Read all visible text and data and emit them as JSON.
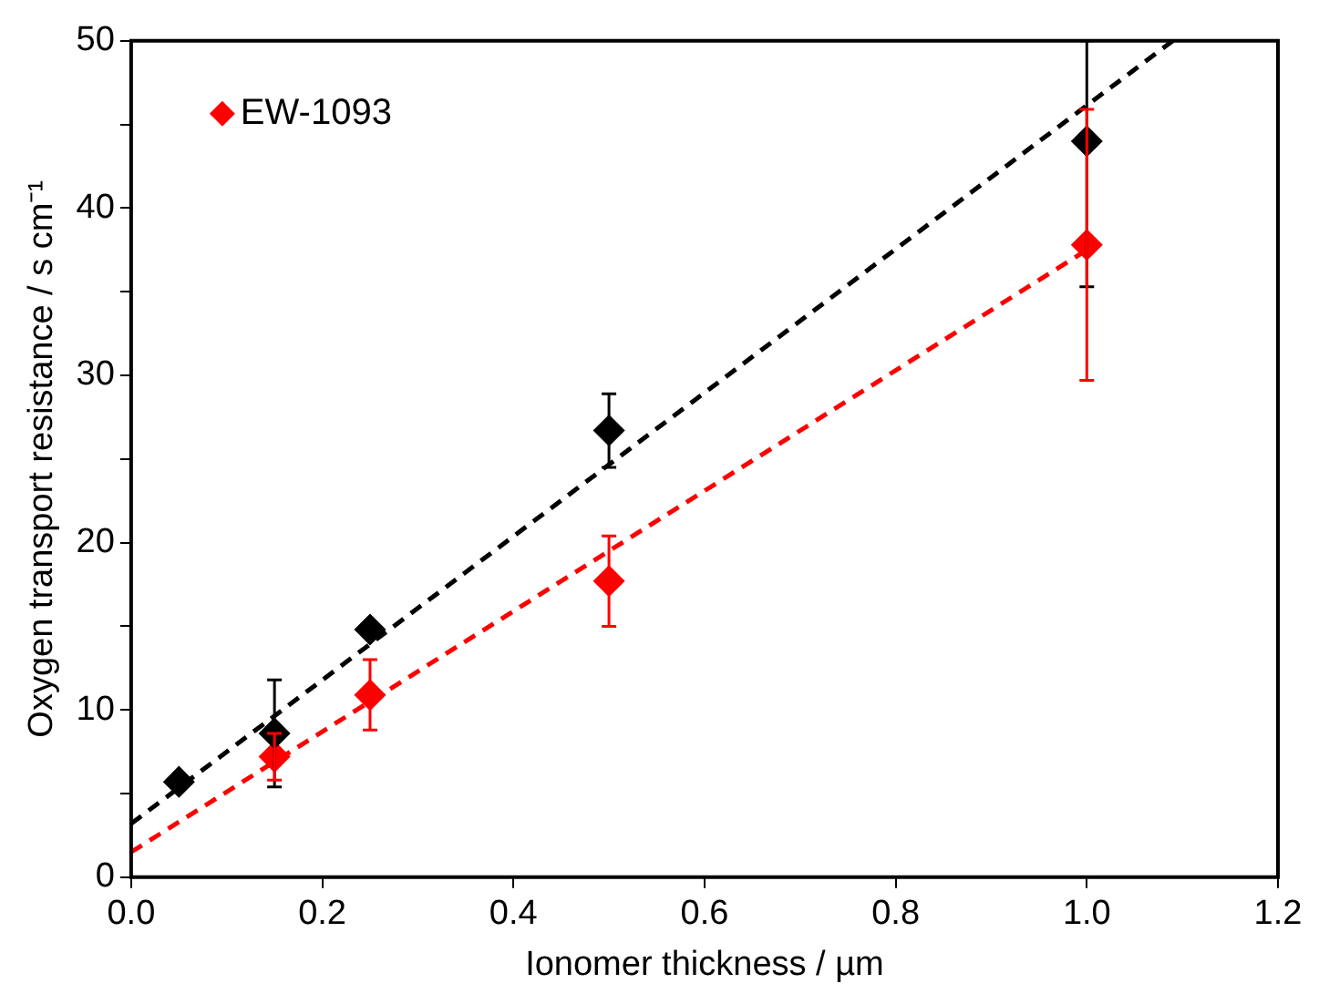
{
  "chart_data": {
    "type": "scatter",
    "xlabel": "Ionomer thickness / µm",
    "ylabel": "Oxygen transport resistance / s cm⁻¹",
    "xlim": [
      0,
      1.2
    ],
    "xticks": [
      {
        "value": 0,
        "label": "0.0"
      },
      {
        "value": 0.2,
        "label": "0.2"
      },
      {
        "value": 0.4,
        "label": "0.4"
      },
      {
        "value": 0.6,
        "label": "0.6"
      },
      {
        "value": 0.8,
        "label": "0.8"
      },
      {
        "value": 1,
        "label": "1.0"
      },
      {
        "value": 1.2,
        "label": "1.2"
      }
    ],
    "ylim": [
      0,
      50
    ],
    "yticks": [
      0,
      {
        "value": 5,
        "label": null
      },
      10,
      {
        "value": 15,
        "label": null
      },
      20,
      {
        "value": 25,
        "label": null
      },
      30,
      {
        "value": 35,
        "label": null
      },
      40,
      {
        "value": 45,
        "label": null
      },
      50
    ],
    "legend": "top left",
    "marker": "diamond",
    "series": [
      {
        "color": "#000000",
        "x": [
          0.05,
          0.15,
          0.25,
          0.5,
          1.0
        ],
        "values": [
          5.7,
          8.6,
          14.8,
          26.7,
          44.0
        ],
        "errors": [
          null,
          3.2,
          null,
          2.2,
          [
            35.3,
            50
          ]
        ]
      },
      {
        "name": "EW-1093",
        "color": "#ff0000",
        "x": [
          0.15,
          0.25,
          0.5,
          1.0
        ],
        "values": [
          7.2,
          10.9,
          17.7,
          37.8
        ],
        "errors": [
          1.4,
          2.1,
          2.7,
          8.1
        ]
      },
      {
        "type": "line",
        "color": "#000000",
        "x": [
          0,
          1.09
        ],
        "values": [
          3.2,
          50
        ],
        "marker": "none",
        "line_style": "dashed"
      },
      {
        "type": "line",
        "color": "#ff0000",
        "x": [
          0,
          1.0
        ],
        "values": [
          1.5,
          37.5
        ],
        "marker": "none",
        "line_style": "dashed"
      }
    ]
  }
}
